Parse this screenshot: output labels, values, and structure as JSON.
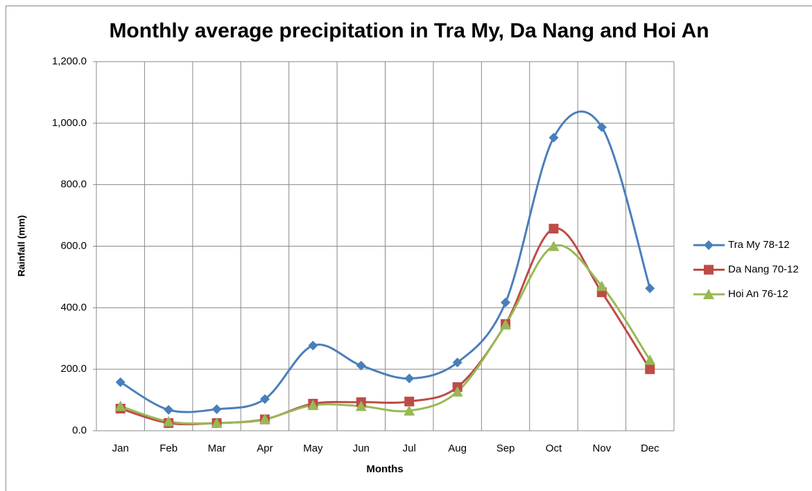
{
  "chart_data": {
    "type": "line",
    "title": "Monthly average precipitation in Tra My, Da Nang and Hoi An",
    "x_label": "Months",
    "y_label": "Rainfall (mm)",
    "categories": [
      "Jan",
      "Feb",
      "Mar",
      "Apr",
      "May",
      "Jun",
      "Jul",
      "Aug",
      "Sep",
      "Oct",
      "Nov",
      "Dec"
    ],
    "series": [
      {
        "name": "Tra My 78-12",
        "color": "#4a7ebb",
        "marker": "diamond",
        "values": [
          158,
          68,
          70,
          103,
          277,
          212,
          170,
          222,
          417,
          953,
          987,
          463
        ]
      },
      {
        "name": "Da Nang 70-12",
        "color": "#be4b48",
        "marker": "square",
        "values": [
          72,
          25,
          25,
          37,
          88,
          93,
          95,
          142,
          347,
          657,
          450,
          200
        ]
      },
      {
        "name": "Hoi An 76-12",
        "color": "#98b954",
        "marker": "triangle",
        "values": [
          80,
          30,
          25,
          38,
          83,
          80,
          65,
          127,
          345,
          600,
          470,
          230
        ]
      }
    ],
    "ylim": [
      0,
      1200
    ],
    "yticks": [
      {
        "value": 0,
        "label": "0.0"
      },
      {
        "value": 200,
        "label": "200.0"
      },
      {
        "value": 400,
        "label": "400.0"
      },
      {
        "value": 600,
        "label": "600.0"
      },
      {
        "value": 800,
        "label": "800.0"
      },
      {
        "value": 1000,
        "label": "1,000.0"
      },
      {
        "value": 1200,
        "label": "1,200.0"
      }
    ],
    "grid": true,
    "smooth": true,
    "legend": "right"
  }
}
